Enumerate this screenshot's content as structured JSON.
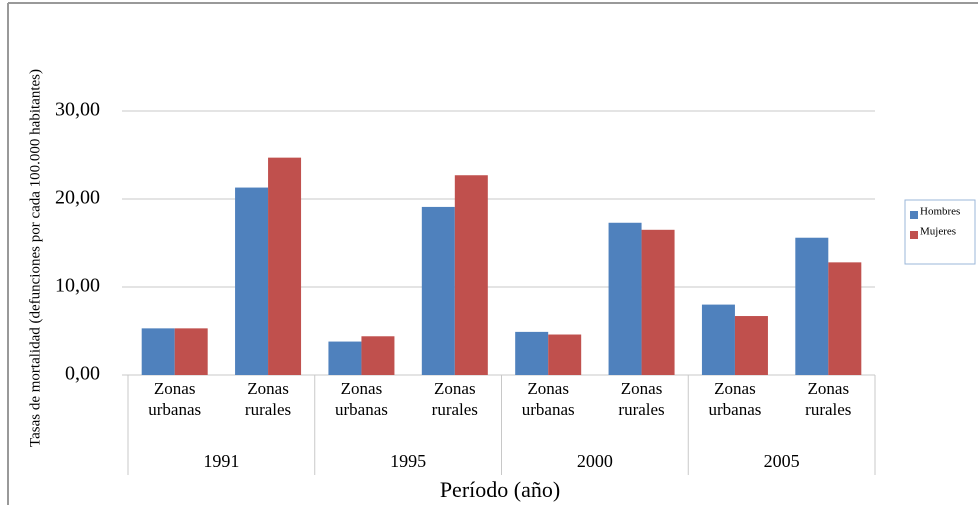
{
  "chart_data": {
    "type": "bar",
    "y_label": "Tasas de mortalidad (defunciones por cada 100.000 habitantes)",
    "x_label": "Período (año)",
    "categories": [
      "Zonas urbanas",
      "Zonas rurales",
      "Zonas urbanas",
      "Zonas rurales",
      "Zonas urbanas",
      "Zonas rurales",
      "Zonas urbanas",
      "Zonas rurales"
    ],
    "groups": [
      "1991",
      "1995",
      "2000",
      "2005"
    ],
    "series": [
      {
        "name": "Hombres",
        "color": "#4f81bd",
        "values": [
          5.3,
          21.3,
          3.8,
          19.1,
          4.9,
          17.3,
          8.0,
          15.6
        ]
      },
      {
        "name": "Mujeres",
        "color": "#c0504d",
        "values": [
          5.3,
          24.7,
          4.4,
          22.7,
          4.6,
          16.5,
          6.7,
          12.8
        ]
      }
    ],
    "ylim": [
      0,
      30
    ],
    "yticks": [
      {
        "value": 0,
        "label": "0,00"
      },
      {
        "value": 10,
        "label": "10,00"
      },
      {
        "value": 20,
        "label": "20,00"
      },
      {
        "value": 30,
        "label": "30,00"
      }
    ],
    "grid": true,
    "legend": "right"
  }
}
